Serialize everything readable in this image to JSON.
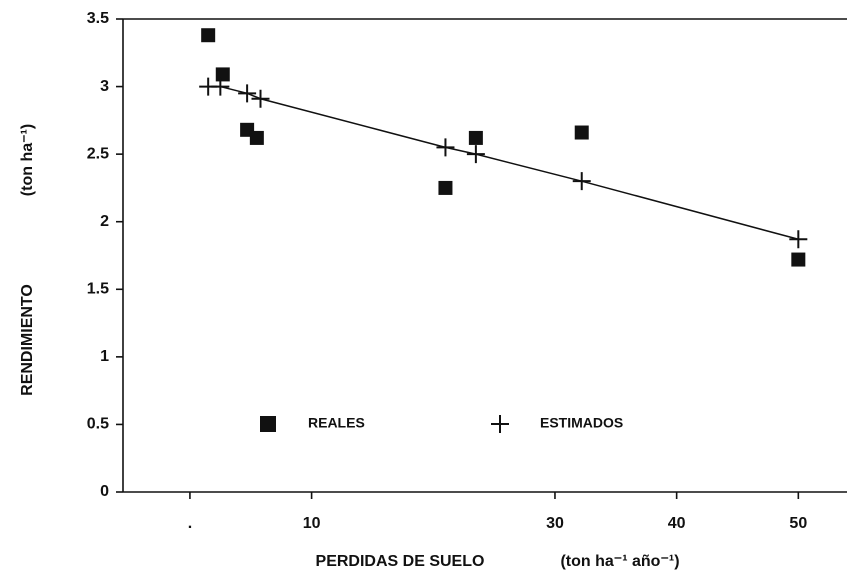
{
  "chart_data": {
    "type": "scatter",
    "x_label": "PERDIDAS DE SUELO",
    "x_unit": "(ton ha⁻¹ año⁻¹)",
    "y_label": "RENDIMIENTO",
    "y_unit": "(ton ha⁻¹)",
    "xlim": [
      -5.5,
      54
    ],
    "ylim": [
      0,
      3.5
    ],
    "xticks": [
      {
        "value": 0,
        "label": "."
      },
      10,
      30,
      40,
      50
    ],
    "yticks": [
      0,
      0.5,
      1,
      1.5,
      2,
      2.5,
      3,
      3.5
    ],
    "series": [
      {
        "name": "REALES",
        "marker": "square",
        "color": "#111111",
        "x": [
          1.5,
          2.7,
          4.7,
          5.5,
          21,
          23.5,
          32.2,
          50
        ],
        "values": [
          3.38,
          3.09,
          2.68,
          2.62,
          2.25,
          2.62,
          2.66,
          1.72
        ]
      },
      {
        "name": "ESTIMADOS",
        "marker": "plus",
        "color": "#111111",
        "line": true,
        "x": [
          1.5,
          2.5,
          4.7,
          5.8,
          21,
          23.5,
          32.2,
          50
        ],
        "values": [
          3.0,
          3.0,
          2.95,
          2.91,
          2.55,
          2.5,
          2.3,
          1.87
        ]
      }
    ]
  }
}
